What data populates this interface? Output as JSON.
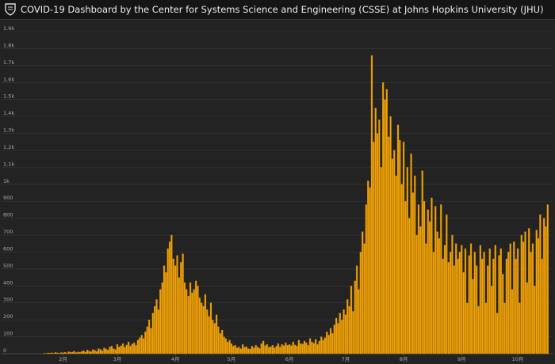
{
  "header": {
    "title": "COVID-19 Dashboard by the Center for Systems Science and Engineering (CSSE) at Johns Hopkins University (JHU)"
  },
  "chart_data": {
    "type": "bar",
    "color": "#f0a30a",
    "grid": true,
    "ylim": [
      0,
      1900
    ],
    "yticks": [
      0,
      100,
      200,
      300,
      400,
      500,
      600,
      700,
      800,
      900,
      {
        "value": 1000,
        "label": "1k"
      },
      {
        "value": 1100,
        "label": "1.1k"
      },
      {
        "value": 1200,
        "label": "1.2k"
      },
      {
        "value": 1300,
        "label": "1.3k"
      },
      {
        "value": 1400,
        "label": "1.4k"
      },
      {
        "value": 1500,
        "label": "1.5k"
      },
      {
        "value": 1600,
        "label": "1.6k"
      },
      {
        "value": 1700,
        "label": "1.7k"
      },
      {
        "value": 1800,
        "label": "1.8k"
      },
      {
        "value": 1900,
        "label": "1.9k"
      }
    ],
    "categories": [
      null,
      null,
      null,
      null,
      null,
      null,
      null,
      null,
      null,
      null,
      null,
      null,
      null,
      null,
      null,
      null,
      null,
      null,
      null,
      null,
      null,
      null,
      null,
      null,
      null,
      null,
      "2月",
      null,
      null,
      null,
      null,
      null,
      null,
      null,
      null,
      null,
      null,
      null,
      null,
      null,
      null,
      null,
      null,
      null,
      null,
      null,
      null,
      null,
      null,
      null,
      null,
      null,
      null,
      null,
      null,
      "3月",
      null,
      null,
      null,
      null,
      null,
      null,
      null,
      null,
      null,
      null,
      null,
      null,
      null,
      null,
      null,
      null,
      null,
      null,
      null,
      null,
      null,
      null,
      null,
      null,
      null,
      null,
      null,
      null,
      null,
      null,
      "4月",
      null,
      null,
      null,
      null,
      null,
      null,
      null,
      null,
      null,
      null,
      null,
      null,
      null,
      null,
      null,
      null,
      null,
      null,
      null,
      null,
      null,
      null,
      null,
      null,
      null,
      null,
      null,
      null,
      null,
      "5月",
      null,
      null,
      null,
      null,
      null,
      null,
      null,
      null,
      null,
      null,
      null,
      null,
      null,
      null,
      null,
      null,
      null,
      null,
      null,
      null,
      null,
      null,
      null,
      null,
      null,
      null,
      null,
      null,
      null,
      null,
      "6月",
      null,
      null,
      null,
      null,
      null,
      null,
      null,
      null,
      null,
      null,
      null,
      null,
      null,
      null,
      null,
      null,
      null,
      null,
      null,
      null,
      null,
      null,
      null,
      null,
      null,
      null,
      null,
      null,
      null,
      "7月",
      null,
      null,
      null,
      null,
      null,
      null,
      null,
      null,
      null,
      null,
      null,
      null,
      null,
      null,
      null,
      null,
      null,
      null,
      null,
      null,
      null,
      null,
      null,
      null,
      null,
      null,
      null,
      null,
      null,
      null,
      "8月",
      null,
      null,
      null,
      null,
      null,
      null,
      null,
      null,
      null,
      null,
      null,
      null,
      null,
      null,
      null,
      null,
      null,
      null,
      null,
      null,
      null,
      null,
      null,
      null,
      null,
      null,
      null,
      null,
      null,
      null,
      "9月",
      null,
      null,
      null,
      null,
      null,
      null,
      null,
      null,
      null,
      null,
      null,
      null,
      null,
      null,
      null,
      null,
      null,
      null,
      null,
      null,
      null,
      null,
      null,
      null,
      null,
      null,
      null,
      null,
      null,
      "10月",
      null,
      null,
      null,
      null,
      null,
      null,
      null,
      null,
      null,
      null,
      null,
      null,
      null,
      null,
      null,
      null
    ],
    "values": [
      0,
      0,
      0,
      0,
      0,
      0,
      0,
      0,
      0,
      0,
      0,
      0,
      0,
      0,
      0,
      0,
      3,
      2,
      5,
      4,
      6,
      3,
      8,
      5,
      4,
      7,
      6,
      9,
      5,
      12,
      8,
      10,
      15,
      7,
      11,
      9,
      14,
      18,
      10,
      22,
      16,
      12,
      25,
      20,
      14,
      30,
      26,
      18,
      35,
      28,
      22,
      40,
      45,
      30,
      25,
      55,
      40,
      48,
      60,
      38,
      52,
      70,
      45,
      58,
      65,
      50,
      80,
      95,
      110,
      90,
      130,
      160,
      200,
      150,
      240,
      280,
      320,
      260,
      380,
      420,
      520,
      480,
      620,
      660,
      700,
      560,
      520,
      580,
      450,
      540,
      590,
      420,
      380,
      340,
      420,
      360,
      380,
      430,
      400,
      330,
      300,
      280,
      350,
      260,
      220,
      300,
      200,
      180,
      230,
      160,
      120,
      140,
      100,
      90,
      70,
      80,
      60,
      45,
      50,
      35,
      40,
      30,
      55,
      38,
      42,
      30,
      28,
      45,
      35,
      50,
      40,
      32,
      60,
      75,
      48,
      55,
      38,
      42,
      50,
      35,
      45,
      60,
      40,
      55,
      48,
      65,
      50,
      55,
      48,
      70,
      52,
      45,
      80,
      60,
      58,
      75,
      65,
      50,
      90,
      70,
      62,
      85,
      55,
      75,
      100,
      80,
      95,
      130,
      110,
      150,
      120,
      170,
      210,
      180,
      240,
      200,
      260,
      230,
      320,
      280,
      400,
      250,
      430,
      520,
      380,
      600,
      720,
      650,
      880,
      1020,
      980,
      1760,
      1250,
      1450,
      1300,
      1380,
      1100,
      1600,
      1500,
      1560,
      1280,
      1400,
      1150,
      1200,
      1050,
      1350,
      1260,
      1000,
      1250,
      900,
      1100,
      800,
      1180,
      950,
      1050,
      700,
      880,
      750,
      1080,
      900,
      650,
      850,
      780,
      920,
      600,
      870,
      720,
      680,
      880,
      560,
      640,
      820,
      540,
      600,
      700,
      520,
      650,
      560,
      600,
      640,
      480,
      620,
      300,
      580,
      650,
      440,
      600,
      520,
      280,
      640,
      560,
      600,
      300,
      520,
      620,
      400,
      560,
      640,
      240,
      580,
      620,
      470,
      300,
      560,
      600,
      650,
      380,
      660,
      560,
      620,
      300,
      700,
      660,
      720,
      420,
      740,
      600,
      650,
      400,
      730,
      680,
      820,
      560,
      800,
      750,
      880
    ]
  }
}
